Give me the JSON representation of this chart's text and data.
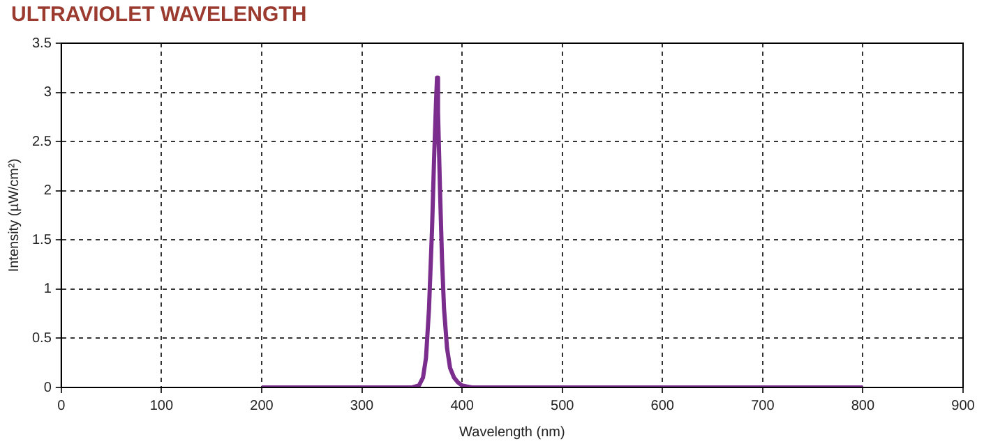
{
  "chart_data": {
    "type": "line",
    "title": "ULTRAVIOLET WAVELENGTH",
    "xlabel": "Wavelength (nm)",
    "ylabel": "Intensity (µW/cm²)",
    "x": [
      200,
      300,
      350,
      357,
      361,
      364,
      367,
      370,
      372,
      374,
      375,
      376,
      378,
      380,
      382,
      385,
      388,
      392,
      396,
      400,
      405,
      410,
      500,
      600,
      700,
      800
    ],
    "series": [
      {
        "color": "#7b2d8e",
        "values": [
          0,
          0,
          0,
          0.02,
          0.1,
          0.3,
          0.8,
          1.6,
          2.3,
          2.9,
          3.15,
          2.8,
          2.0,
          1.3,
          0.8,
          0.4,
          0.2,
          0.1,
          0.05,
          0.02,
          0.01,
          0,
          0,
          0,
          0,
          0
        ]
      }
    ],
    "xlim": [
      0,
      900
    ],
    "xticks": [
      0,
      100,
      200,
      300,
      400,
      500,
      600,
      700,
      800,
      900
    ],
    "ylim": [
      0,
      3.5
    ],
    "yticks": [
      0,
      0.5,
      1,
      1.5,
      2,
      2.5,
      3,
      3.5
    ],
    "grid": true,
    "legend": false,
    "marker": "none",
    "line_style": "solid"
  }
}
